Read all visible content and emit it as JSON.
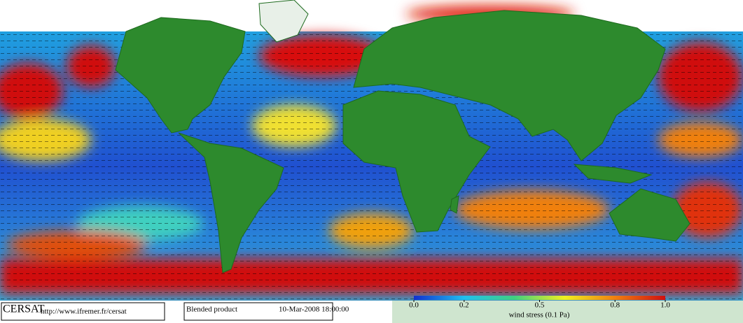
{
  "map": {
    "footer": {
      "brand": "CERSAT",
      "url": "http://www.ifremer.fr/cersat",
      "product": "Blended product",
      "timestamp": "10-Mar-2008 18:00:00"
    },
    "colorbar": {
      "label": "wind stress (0.1 Pa)",
      "range": [
        0,
        1
      ],
      "ticks": [
        {
          "value": 0,
          "label": "0.0"
        },
        {
          "value": 0.2,
          "label": "0.2"
        },
        {
          "value": 0.5,
          "label": "0.5"
        },
        {
          "value": 0.8,
          "label": "0.8"
        },
        {
          "value": 1,
          "label": "1.0"
        }
      ],
      "colors": [
        "#1030d0",
        "#20c0f0",
        "#40d080",
        "#f0f020",
        "#f08010",
        "#d01010"
      ]
    }
  }
}
